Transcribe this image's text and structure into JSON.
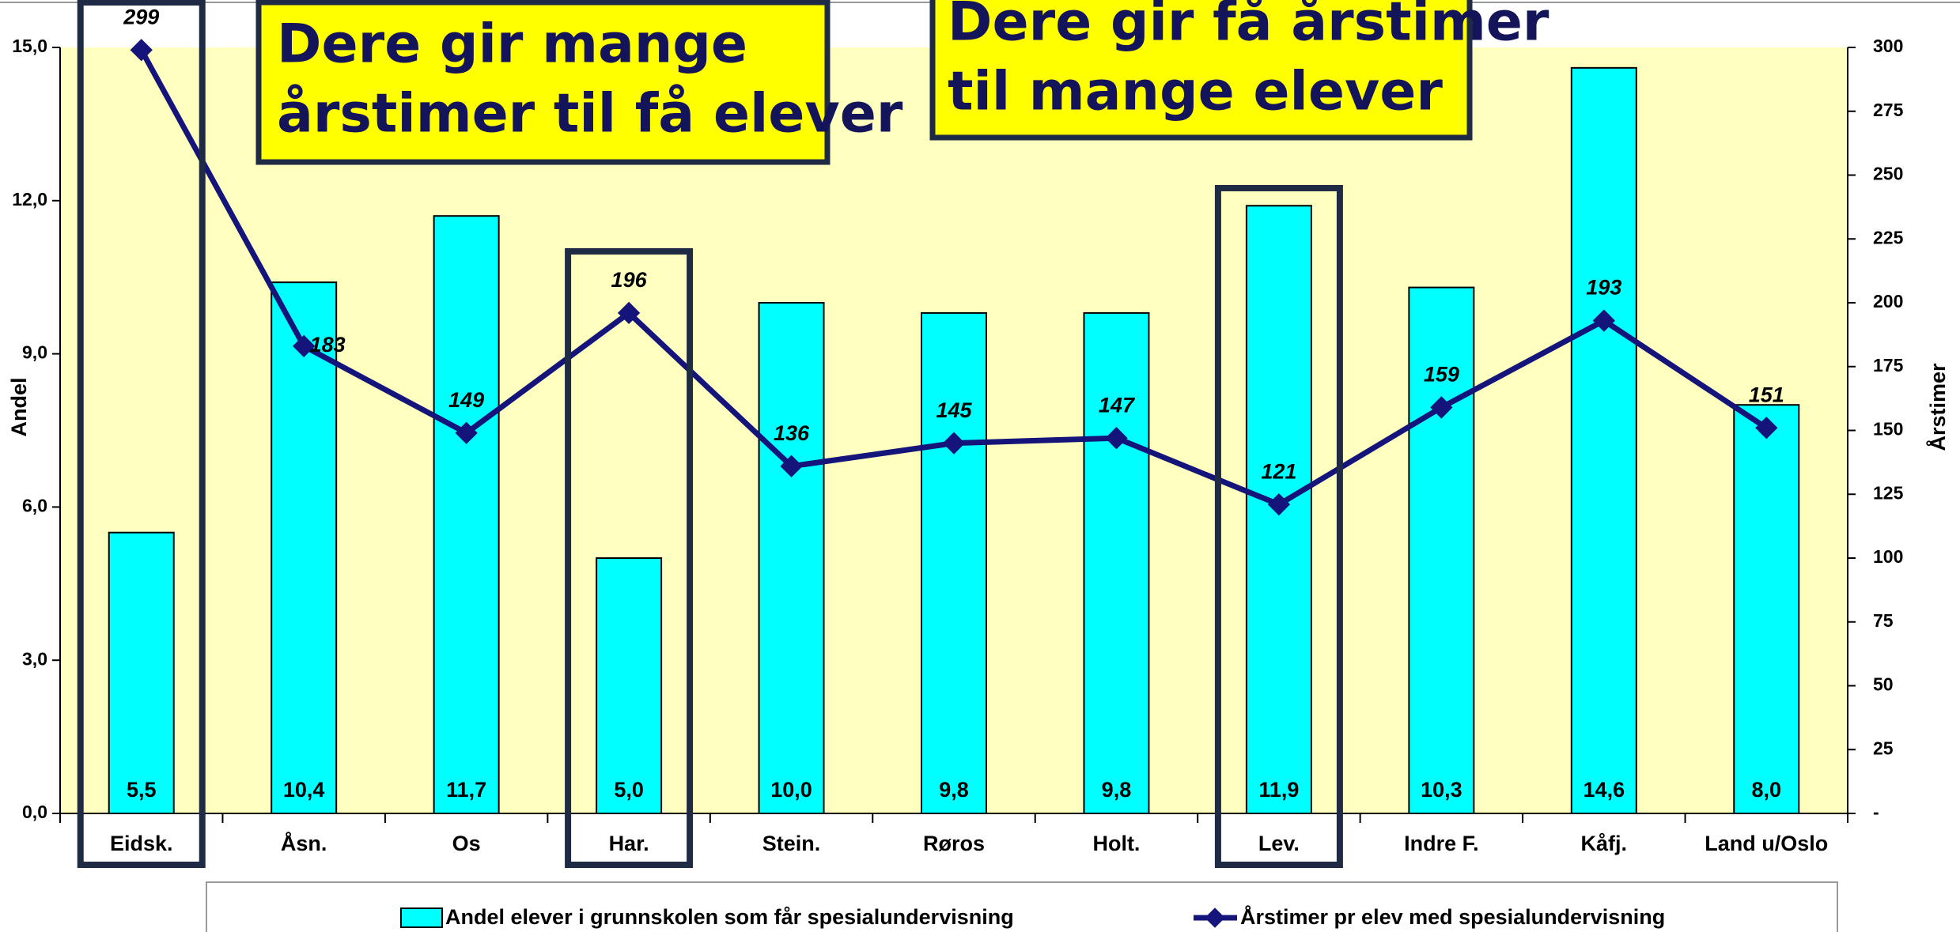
{
  "chart_data": {
    "type": "bar_line",
    "categories": [
      "Eidsk.",
      "Åsn.",
      "Os",
      "Har.",
      "Stein.",
      "Røros",
      "Holt.",
      "Lev.",
      "Indre F.",
      "Kåfj.",
      "Land u/Oslo"
    ],
    "series": [
      {
        "name": "Andel elever i grunnskolen som får spesialundervisning",
        "color": "#00ffff",
        "type": "bar",
        "values": [
          5.5,
          10.4,
          11.7,
          5.0,
          10.0,
          9.8,
          9.8,
          11.9,
          10.3,
          14.6,
          8.0
        ],
        "value_labels": [
          "5,5",
          "10,4",
          "11,7",
          "5,0",
          "10,0",
          "9,8",
          "9,8",
          "11,9",
          "10,3",
          "14,6",
          "8,0"
        ]
      },
      {
        "name": "Årstimer pr elev med spesialundervisning",
        "color": "#14147a",
        "type": "line",
        "axis": "y2",
        "values": [
          299,
          183,
          149,
          196,
          136,
          145,
          147,
          121,
          159,
          193,
          151
        ]
      }
    ],
    "ylabel": "Andel",
    "y2label": "Årstimer",
    "ylim": [
      0,
      15
    ],
    "yticks": [
      {
        "value": 0,
        "label": "0,0"
      },
      {
        "value": 3,
        "label": "3,0"
      },
      {
        "value": 6,
        "label": "6,0"
      },
      {
        "value": 9,
        "label": "9,0"
      },
      {
        "value": 12,
        "label": "12,0"
      },
      {
        "value": 15,
        "label": "15,0"
      }
    ],
    "y2lim": [
      0,
      300
    ],
    "y2ticks": [
      {
        "value": 0,
        "label": "-"
      },
      25,
      50,
      75,
      100,
      125,
      150,
      175,
      200,
      225,
      250,
      275,
      300
    ],
    "annotations": [
      [
        "Dere gir mange",
        "årstimer til få elever"
      ],
      [
        "Dere gir få årstimer",
        "til mange elever"
      ]
    ],
    "legend": "bottom"
  }
}
